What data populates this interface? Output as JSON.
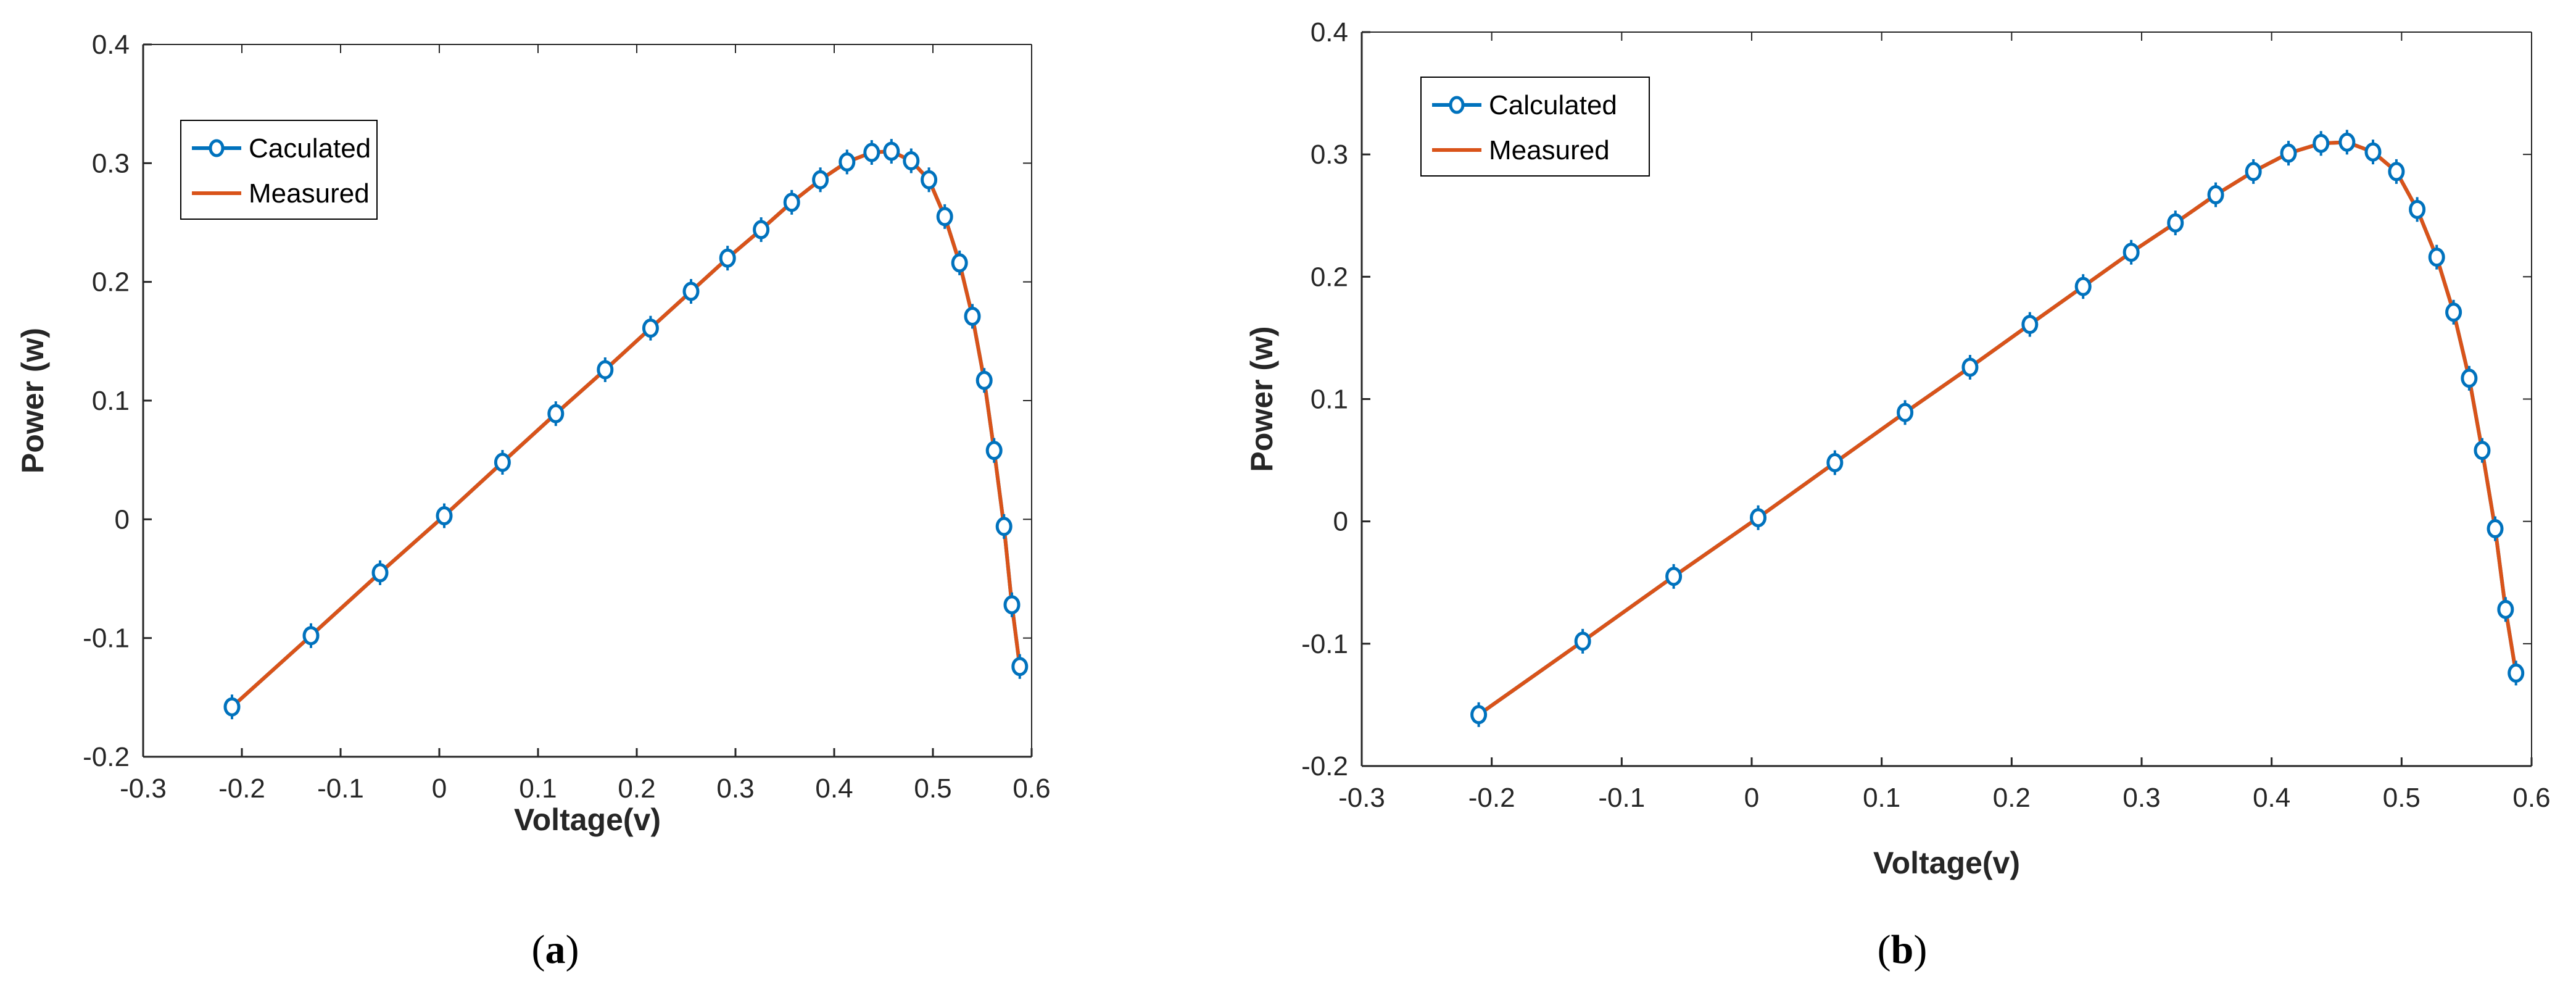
{
  "figure": {
    "captions": [
      "(a)",
      "(b)"
    ]
  },
  "colors": {
    "calculated": "#0072BD",
    "measured": "#D95319",
    "axis": "#262626",
    "background": "#FFFFFF"
  },
  "chart_data": [
    {
      "type": "line",
      "panel": "a",
      "caption_label": "a",
      "title": "",
      "xlabel": "Voltage(v)",
      "ylabel": "Power (w)",
      "xlim": [
        -0.3,
        0.6
      ],
      "ylim": [
        -0.2,
        0.4
      ],
      "xticks": [
        "-0.3",
        "-0.2",
        "-0.1",
        "0",
        "0.1",
        "0.2",
        "0.3",
        "0.4",
        "0.5",
        "0.6"
      ],
      "yticks": [
        "-0.2",
        "-0.1",
        "0",
        "0.1",
        "0.2",
        "0.3",
        "0.4"
      ],
      "grid": false,
      "legend_position": "top-left",
      "series": [
        {
          "name": "Caculated",
          "style": "line-marker",
          "color": "#0072BD",
          "x": [
            -0.21,
            -0.13,
            -0.06,
            0.005,
            0.064,
            0.118,
            0.168,
            0.214,
            0.255,
            0.292,
            0.326,
            0.357,
            0.386,
            0.413,
            0.438,
            0.458,
            0.478,
            0.496,
            0.512,
            0.527,
            0.54,
            0.552,
            0.562,
            0.572,
            0.58,
            0.588
          ],
          "y": [
            -0.158,
            -0.098,
            -0.045,
            0.003,
            0.048,
            0.089,
            0.126,
            0.161,
            0.192,
            0.22,
            0.244,
            0.267,
            0.286,
            0.301,
            0.309,
            0.31,
            0.302,
            0.286,
            0.255,
            0.216,
            0.171,
            0.117,
            0.058,
            -0.006,
            -0.072,
            -0.124
          ]
        },
        {
          "name": "Measured",
          "style": "line",
          "color": "#D95319",
          "x": [
            -0.21,
            -0.13,
            -0.06,
            0.005,
            0.064,
            0.118,
            0.168,
            0.214,
            0.255,
            0.292,
            0.326,
            0.357,
            0.386,
            0.413,
            0.438,
            0.458,
            0.478,
            0.496,
            0.512,
            0.527,
            0.54,
            0.552,
            0.562,
            0.572,
            0.58,
            0.588
          ],
          "y": [
            -0.158,
            -0.098,
            -0.045,
            0.003,
            0.048,
            0.089,
            0.126,
            0.161,
            0.192,
            0.22,
            0.244,
            0.267,
            0.286,
            0.301,
            0.309,
            0.31,
            0.302,
            0.286,
            0.255,
            0.216,
            0.171,
            0.117,
            0.058,
            -0.006,
            -0.072,
            -0.124
          ]
        }
      ]
    },
    {
      "type": "line",
      "panel": "b",
      "caption_label": "b",
      "title": "",
      "xlabel": "Voltage(v)",
      "ylabel": "Power (w)",
      "xlim": [
        -0.3,
        0.6
      ],
      "ylim": [
        -0.2,
        0.4
      ],
      "xticks": [
        "-0.3",
        "-0.2",
        "-0.1",
        "0",
        "0.1",
        "0.2",
        "0.3",
        "0.4",
        "0.5",
        "0.6"
      ],
      "yticks": [
        "-0.2",
        "-0.1",
        "0",
        "0.1",
        "0.2",
        "0.3",
        "0.4"
      ],
      "grid": false,
      "legend_position": "top-left",
      "series": [
        {
          "name": "Calculated",
          "style": "line-marker",
          "color": "#0072BD",
          "x": [
            -0.21,
            -0.13,
            -0.06,
            0.005,
            0.064,
            0.118,
            0.168,
            0.214,
            0.255,
            0.292,
            0.326,
            0.357,
            0.386,
            0.413,
            0.438,
            0.458,
            0.478,
            0.496,
            0.512,
            0.527,
            0.54,
            0.552,
            0.562,
            0.572,
            0.58,
            0.588
          ],
          "y": [
            -0.158,
            -0.098,
            -0.045,
            0.003,
            0.048,
            0.089,
            0.126,
            0.161,
            0.192,
            0.22,
            0.244,
            0.267,
            0.286,
            0.301,
            0.309,
            0.31,
            0.302,
            0.286,
            0.255,
            0.216,
            0.171,
            0.117,
            0.058,
            -0.006,
            -0.072,
            -0.124
          ]
        },
        {
          "name": "Measured",
          "style": "line",
          "color": "#D95319",
          "x": [
            -0.21,
            -0.13,
            -0.06,
            0.005,
            0.064,
            0.118,
            0.168,
            0.214,
            0.255,
            0.292,
            0.326,
            0.357,
            0.386,
            0.413,
            0.438,
            0.458,
            0.478,
            0.496,
            0.512,
            0.527,
            0.54,
            0.552,
            0.562,
            0.572,
            0.58,
            0.588
          ],
          "y": [
            -0.158,
            -0.098,
            -0.045,
            0.003,
            0.048,
            0.089,
            0.126,
            0.161,
            0.192,
            0.22,
            0.244,
            0.267,
            0.286,
            0.301,
            0.309,
            0.31,
            0.302,
            0.286,
            0.255,
            0.216,
            0.171,
            0.117,
            0.058,
            -0.006,
            -0.072,
            -0.124
          ]
        }
      ]
    }
  ]
}
